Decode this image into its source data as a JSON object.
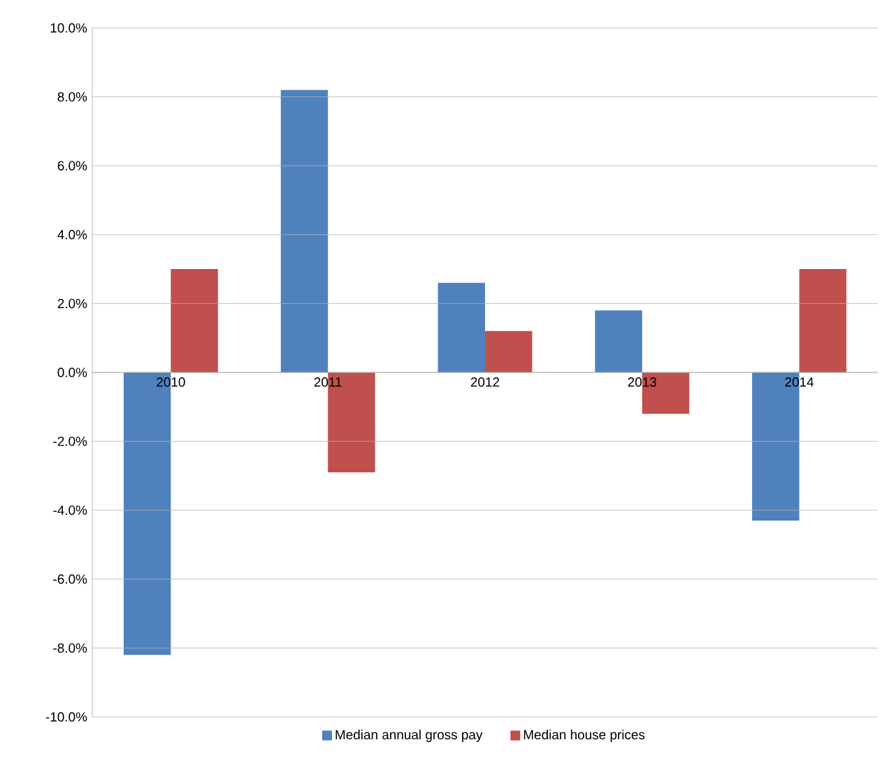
{
  "chart_data": {
    "type": "bar",
    "categories": [
      "2010",
      "2011",
      "2012",
      "2013",
      "2014"
    ],
    "series": [
      {
        "name": "Median annual gross pay",
        "color": "#4f81bd",
        "values": [
          -8.2,
          8.2,
          2.6,
          1.8,
          -4.3
        ]
      },
      {
        "name": "Median house prices",
        "color": "#c0504d",
        "values": [
          3.0,
          -2.9,
          1.2,
          -1.2,
          3.0
        ]
      }
    ],
    "ylim": [
      -10,
      10
    ],
    "yticks": [
      {
        "value": -10,
        "label": "-10.0%"
      },
      {
        "value": -8,
        "label": "-8.0%"
      },
      {
        "value": -6,
        "label": "-6.0%"
      },
      {
        "value": -4,
        "label": "-4.0%"
      },
      {
        "value": -2,
        "label": "-2.0%"
      },
      {
        "value": 0,
        "label": "0.0%"
      },
      {
        "value": 2,
        "label": "2.0%"
      },
      {
        "value": 4,
        "label": "4.0%"
      },
      {
        "value": 6,
        "label": "6.0%"
      },
      {
        "value": 8,
        "label": "8.0%"
      },
      {
        "value": 10,
        "label": "10.0%"
      }
    ],
    "grid": "y",
    "legend": "bottom"
  }
}
